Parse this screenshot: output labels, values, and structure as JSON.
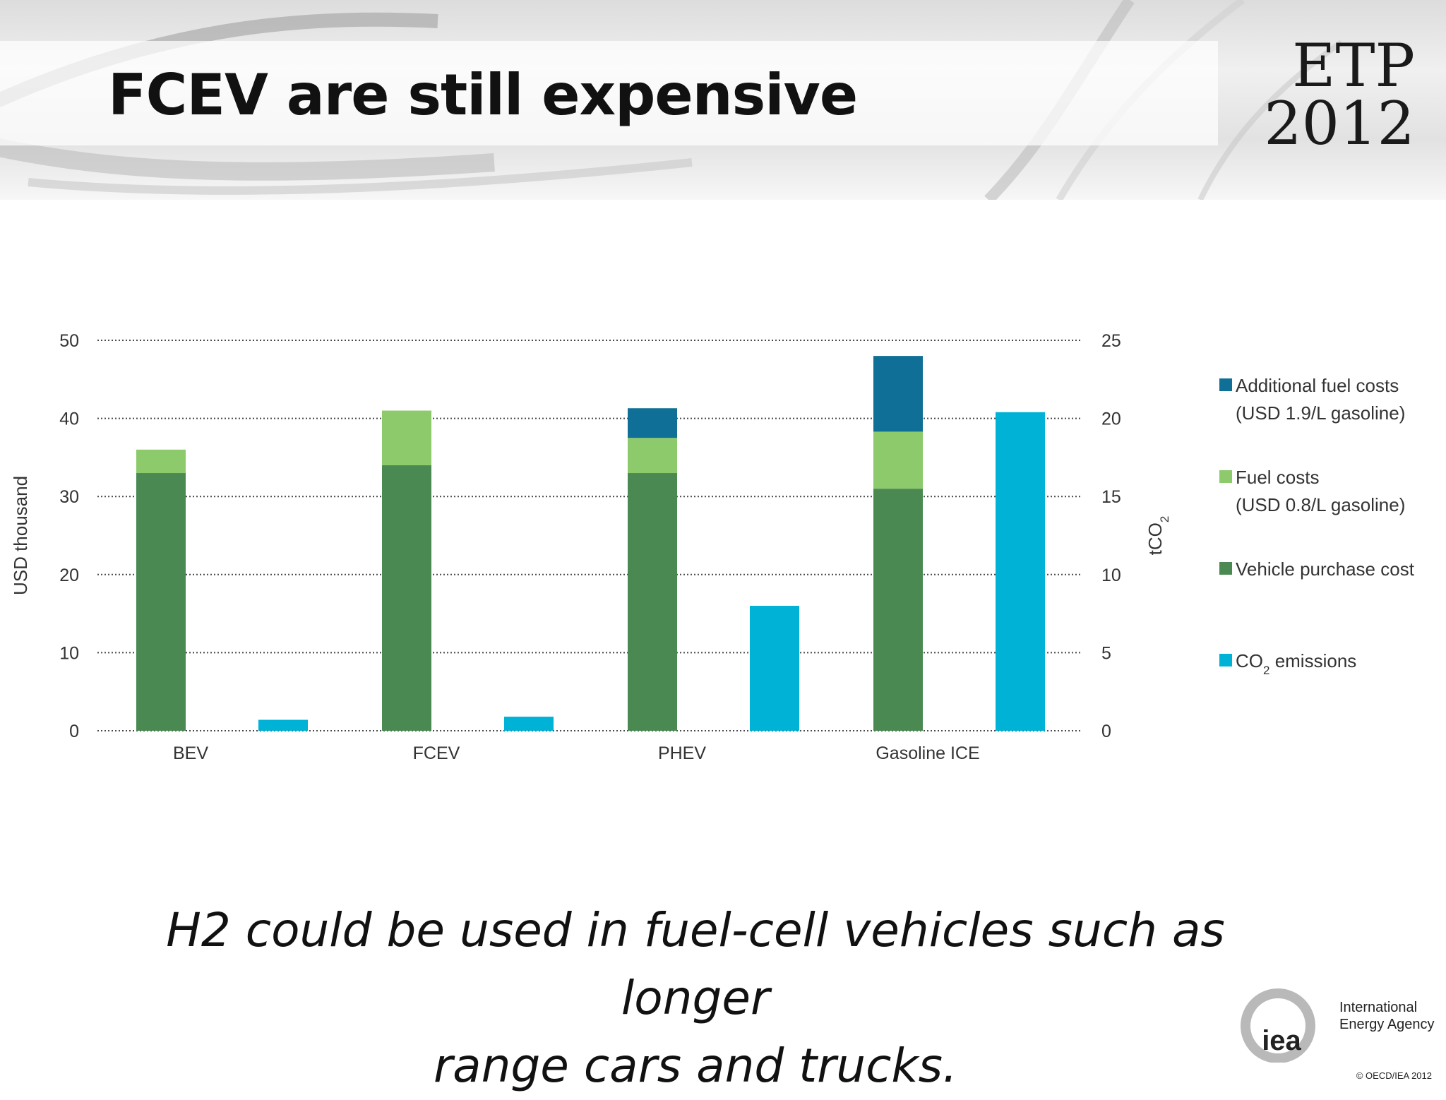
{
  "slide": {
    "title": "FCEV are still expensive",
    "badge_line1": "ETP",
    "badge_line2": "2012",
    "caption_line1": "H2 could be used in fuel-cell vehicles such as longer",
    "caption_line2": "range cars and trucks.",
    "logo_mark": "iea",
    "logo_name_line1": "International",
    "logo_name_line2": "Energy Agency",
    "copyright": "© OECD/IEA 2012"
  },
  "chart_data": {
    "type": "bar",
    "stacked": true,
    "categories": [
      "BEV",
      "FCEV",
      "PHEV",
      "Gasoline ICE"
    ],
    "ylabel": "USD thousand",
    "ylabel_right": "tCO2",
    "ylim": [
      0,
      50
    ],
    "ylim_right": [
      0,
      25
    ],
    "yticks": [
      0,
      10,
      20,
      30,
      40,
      50
    ],
    "yticks_right": [
      0,
      5,
      10,
      15,
      20,
      25
    ],
    "grid": "dotted horizontal",
    "legend_position": "right",
    "series": [
      {
        "name": "Vehicle purchase cost",
        "axis": "left",
        "stack": "cost",
        "color": "#4a8a52",
        "values": [
          33,
          34,
          33,
          31
        ]
      },
      {
        "name": "Fuel costs (USD 0.8/L gasoline)",
        "axis": "left",
        "stack": "cost",
        "color": "#8dca6b",
        "values": [
          3,
          7,
          4.5,
          7.3
        ]
      },
      {
        "name": "Additional fuel costs (USD 1.9/L gasoline)",
        "axis": "left",
        "stack": "cost",
        "color": "#106f96",
        "values": [
          0,
          0,
          3.8,
          9.7
        ]
      },
      {
        "name": "CO2 emissions",
        "axis": "right",
        "stack": "co2",
        "color": "#00b2d6",
        "values": [
          0.7,
          0.9,
          8,
          20.4
        ]
      }
    ],
    "legend": [
      {
        "label": [
          "Additional fuel costs",
          "(USD 1.9/L gasoline)"
        ],
        "color": "#106f96"
      },
      {
        "label": [
          "Fuel costs",
          "(USD 0.8/L gasoline)"
        ],
        "color": "#8dca6b"
      },
      {
        "label": [
          "Vehicle purchase cost"
        ],
        "color": "#4a8a52"
      },
      {
        "label": [
          "CO2 emissions"
        ],
        "color": "#00b2d6"
      }
    ]
  }
}
